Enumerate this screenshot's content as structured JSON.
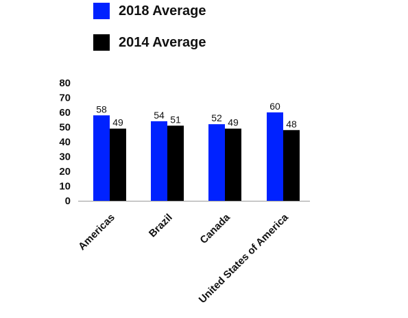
{
  "chart_data": {
    "type": "bar",
    "categories": [
      "Americas",
      "Brazil",
      "Canada",
      "United States of America"
    ],
    "series": [
      {
        "name": "2018 Average",
        "values": [
          58,
          54,
          52,
          60
        ],
        "color": "#0022ff"
      },
      {
        "name": "2014 Average",
        "values": [
          49,
          51,
          49,
          48
        ],
        "color": "#000000"
      }
    ],
    "ylim": [
      0,
      80
    ],
    "yticks": [
      0,
      10,
      20,
      30,
      40,
      50,
      60,
      70,
      80
    ],
    "xlabel": "",
    "ylabel": "",
    "title": "",
    "legend_position": "top-left",
    "grid": false,
    "axis_color": "#999999"
  }
}
